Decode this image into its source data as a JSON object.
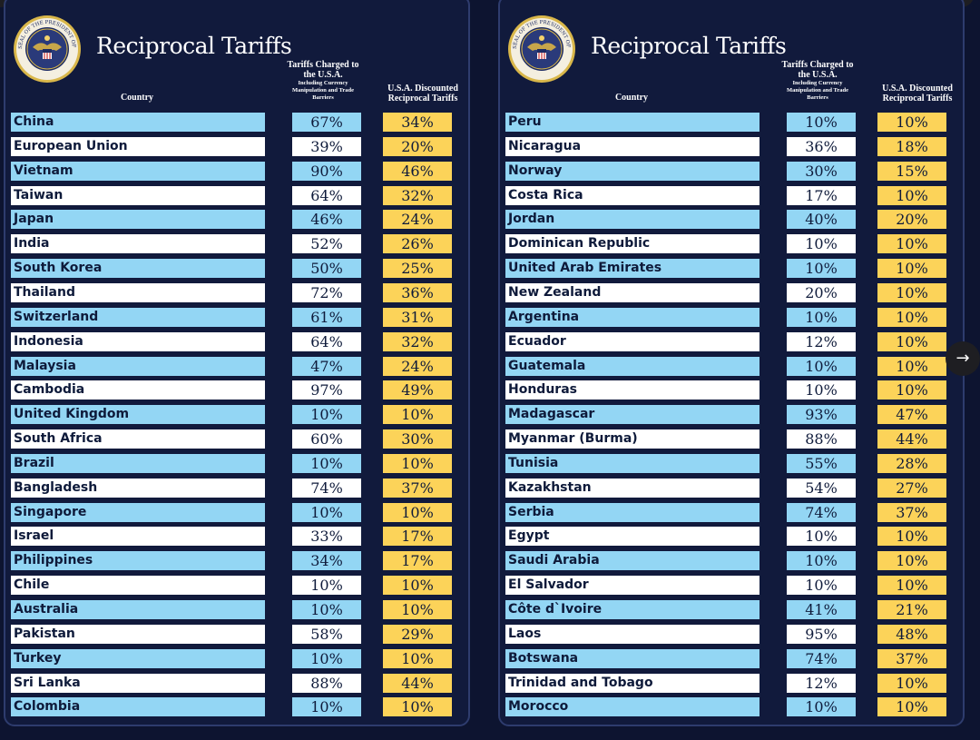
{
  "colors": {
    "row_blue": "#93d6f4",
    "row_white": "#ffffff",
    "discounted": "#fcd359",
    "background": "#111a3c"
  },
  "icons": {
    "seal": "presidential-seal-icon",
    "next": "arrow-right-icon"
  },
  "panels": [
    {
      "title": "Reciprocal Tariffs",
      "header_country": "Country",
      "header_charged": "Tariffs Charged to the U.S.A.",
      "header_charged_sub": "Including Currency Manipulation and Trade Barriers",
      "header_discounted": "U.S.A. Discounted Reciprocal Tariffs"
    },
    {
      "title": "Reciprocal Tariffs",
      "header_country": "Country",
      "header_charged": "Tariffs Charged to the U.S.A.",
      "header_charged_sub": "Including Currency Manipulation and Trade Barriers",
      "header_discounted": "U.S.A. Discounted Reciprocal Tariffs"
    }
  ],
  "seal_text": "SEAL OF THE PRESIDENT OF THE UNITED STATES",
  "chart_data": [
    {
      "type": "table",
      "columns": [
        "Country",
        "Tariffs Charged to the U.S.A.",
        "U.S.A. Discounted Reciprocal Tariffs"
      ],
      "rows": [
        [
          "China",
          "67%",
          "34%"
        ],
        [
          "European Union",
          "39%",
          "20%"
        ],
        [
          "Vietnam",
          "90%",
          "46%"
        ],
        [
          "Taiwan",
          "64%",
          "32%"
        ],
        [
          "Japan",
          "46%",
          "24%"
        ],
        [
          "India",
          "52%",
          "26%"
        ],
        [
          "South Korea",
          "50%",
          "25%"
        ],
        [
          "Thailand",
          "72%",
          "36%"
        ],
        [
          "Switzerland",
          "61%",
          "31%"
        ],
        [
          "Indonesia",
          "64%",
          "32%"
        ],
        [
          "Malaysia",
          "47%",
          "24%"
        ],
        [
          "Cambodia",
          "97%",
          "49%"
        ],
        [
          "United Kingdom",
          "10%",
          "10%"
        ],
        [
          "South Africa",
          "60%",
          "30%"
        ],
        [
          "Brazil",
          "10%",
          "10%"
        ],
        [
          "Bangladesh",
          "74%",
          "37%"
        ],
        [
          "Singapore",
          "10%",
          "10%"
        ],
        [
          "Israel",
          "33%",
          "17%"
        ],
        [
          "Philippines",
          "34%",
          "17%"
        ],
        [
          "Chile",
          "10%",
          "10%"
        ],
        [
          "Australia",
          "10%",
          "10%"
        ],
        [
          "Pakistan",
          "58%",
          "29%"
        ],
        [
          "Turkey",
          "10%",
          "10%"
        ],
        [
          "Sri Lanka",
          "88%",
          "44%"
        ],
        [
          "Colombia",
          "10%",
          "10%"
        ]
      ]
    },
    {
      "type": "table",
      "columns": [
        "Country",
        "Tariffs Charged to the U.S.A.",
        "U.S.A. Discounted Reciprocal Tariffs"
      ],
      "rows": [
        [
          "Peru",
          "10%",
          "10%"
        ],
        [
          "Nicaragua",
          "36%",
          "18%"
        ],
        [
          "Norway",
          "30%",
          "15%"
        ],
        [
          "Costa Rica",
          "17%",
          "10%"
        ],
        [
          "Jordan",
          "40%",
          "20%"
        ],
        [
          "Dominican Republic",
          "10%",
          "10%"
        ],
        [
          "United Arab Emirates",
          "10%",
          "10%"
        ],
        [
          "New Zealand",
          "20%",
          "10%"
        ],
        [
          "Argentina",
          "10%",
          "10%"
        ],
        [
          "Ecuador",
          "12%",
          "10%"
        ],
        [
          "Guatemala",
          "10%",
          "10%"
        ],
        [
          "Honduras",
          "10%",
          "10%"
        ],
        [
          "Madagascar",
          "93%",
          "47%"
        ],
        [
          "Myanmar (Burma)",
          "88%",
          "44%"
        ],
        [
          "Tunisia",
          "55%",
          "28%"
        ],
        [
          "Kazakhstan",
          "54%",
          "27%"
        ],
        [
          "Serbia",
          "74%",
          "37%"
        ],
        [
          "Egypt",
          "10%",
          "10%"
        ],
        [
          "Saudi Arabia",
          "10%",
          "10%"
        ],
        [
          "El Salvador",
          "10%",
          "10%"
        ],
        [
          "Côte d`Ivoire",
          "41%",
          "21%"
        ],
        [
          "Laos",
          "95%",
          "48%"
        ],
        [
          "Botswana",
          "74%",
          "37%"
        ],
        [
          "Trinidad and Tobago",
          "12%",
          "10%"
        ],
        [
          "Morocco",
          "10%",
          "10%"
        ]
      ]
    }
  ]
}
